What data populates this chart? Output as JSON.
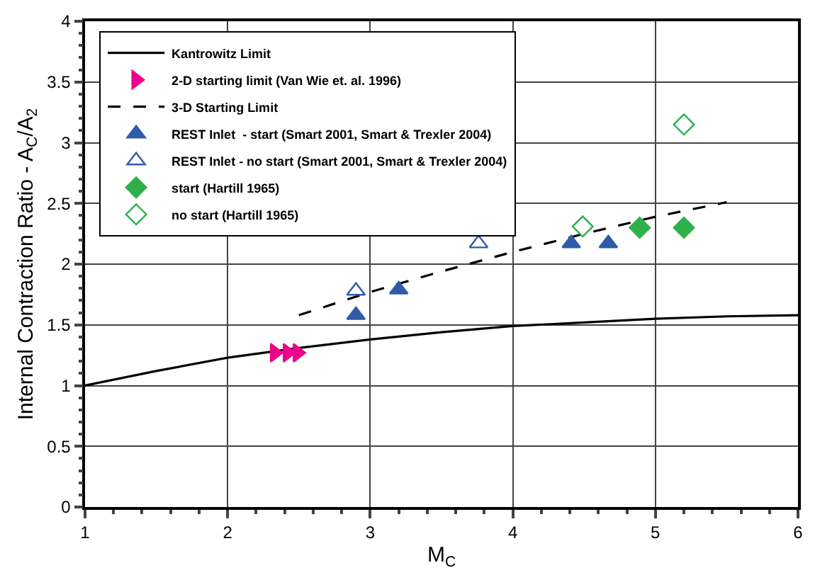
{
  "chart_data": {
    "type": "scatter",
    "xlabel": "M$_{C}$",
    "ylabel": "Internal Contraction Ratio - A$_{C}$/A$_{2}$",
    "xlim": [
      1,
      6
    ],
    "xticks": [
      1,
      2,
      3,
      4,
      5,
      6
    ],
    "ylim": [
      0,
      4
    ],
    "yticks": [
      0,
      0.5,
      1,
      1.5,
      2,
      2.5,
      3,
      3.5,
      4
    ],
    "grid": true,
    "legend": "top left",
    "series": [
      {
        "name": "Kantrowitz Limit",
        "type": "line",
        "line_style": "solid",
        "marker": "none",
        "color": "#000000",
        "x": [
          1,
          1.5,
          2,
          2.5,
          3,
          3.5,
          4,
          4.5,
          5,
          5.5,
          6
        ],
        "values": [
          1.0,
          1.12,
          1.23,
          1.31,
          1.38,
          1.44,
          1.49,
          1.52,
          1.55,
          1.57,
          1.58
        ]
      },
      {
        "name": "2-D starting limit (Van Wie et. al. 1996)",
        "marker": "triangle-right",
        "color": "#ec008c",
        "x": [
          2.33,
          2.42,
          2.49
        ],
        "values": [
          1.27,
          1.27,
          1.27
        ]
      },
      {
        "name": "3-D Starting Limit",
        "type": "line",
        "line_style": "dashed",
        "marker": "none",
        "color": "#000000",
        "x": [
          2.5,
          3,
          3.5,
          4,
          4.5,
          5,
          5.5
        ],
        "values": [
          1.58,
          1.77,
          1.94,
          2.1,
          2.25,
          2.39,
          2.51
        ]
      },
      {
        "name": "REST Inlet  - start (Smart 2001, Smart & Trexler 2004)",
        "marker": "triangle",
        "color": "#2e5ca8",
        "x": [
          2.9,
          3.2,
          4.41,
          4.67
        ],
        "values": [
          1.58,
          1.79,
          2.17,
          2.17
        ]
      },
      {
        "name": "REST Inlet - no start (Smart 2001, Smart & Trexler 2004)",
        "marker": "triangle-open",
        "color": "#2e5ca8",
        "x": [
          2.9,
          3.76
        ],
        "values": [
          1.78,
          2.17
        ]
      },
      {
        "name": "start (Hartill 1965)",
        "marker": "diamond",
        "color": "#2eb04a",
        "x": [
          4.89,
          5.2
        ],
        "values": [
          2.3,
          2.3
        ]
      },
      {
        "name": "no start (Hartill 1965)",
        "marker": "diamond-open",
        "color": "#2eb04a",
        "x": [
          4.49,
          5.2
        ],
        "values": [
          2.31,
          3.15
        ]
      }
    ]
  }
}
